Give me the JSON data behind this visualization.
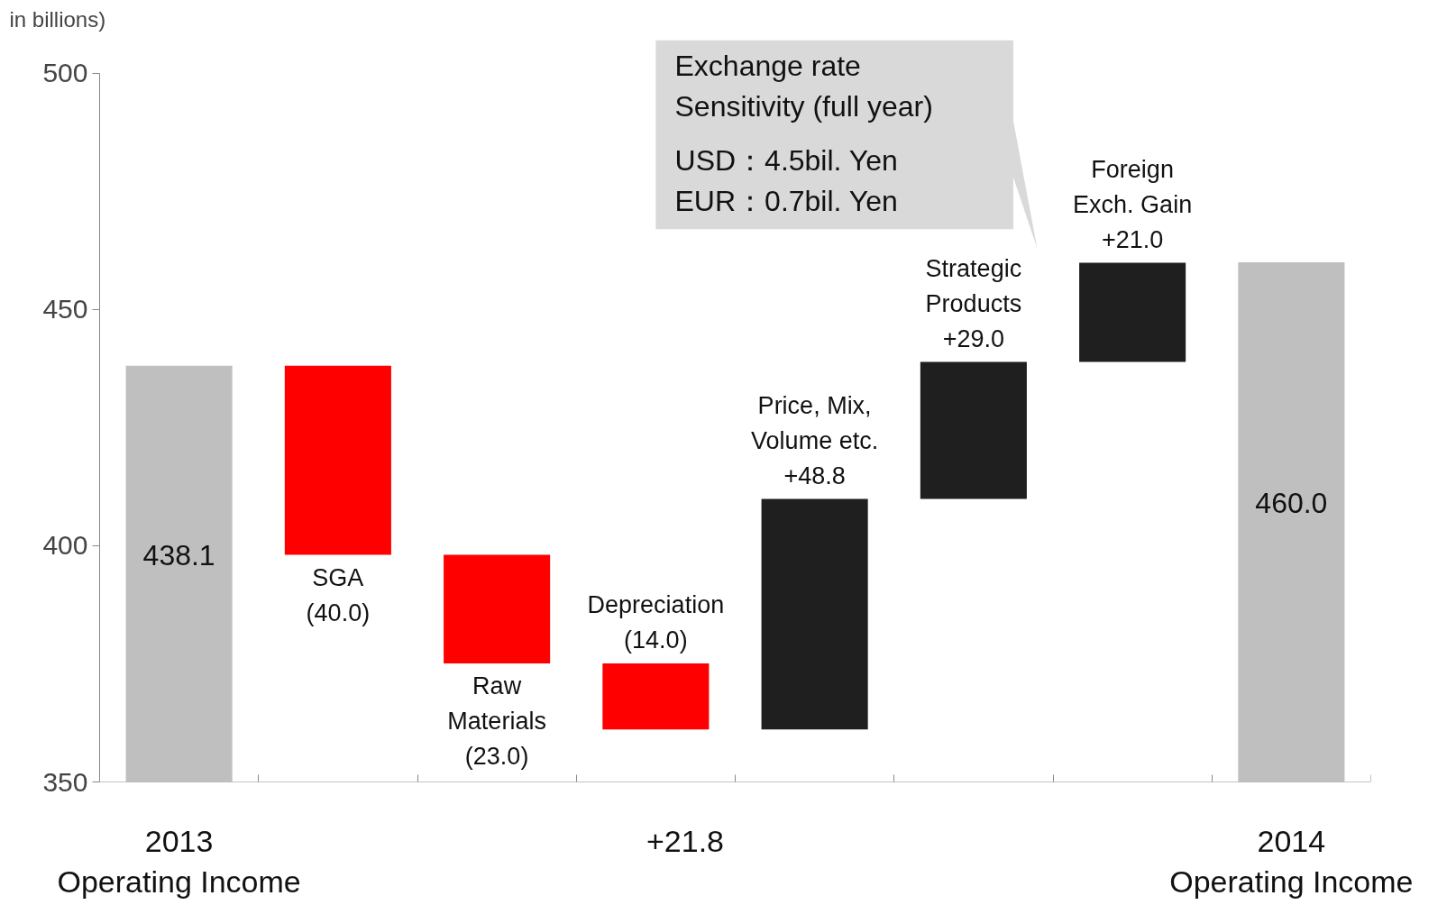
{
  "chart_data": {
    "type": "bar",
    "ylabel": "in billions)",
    "categories": [
      "2013\nOperating Income",
      null,
      null,
      null,
      null,
      null,
      null,
      "2014\nOperating Income"
    ],
    "values": [
      438.1,
      -40.0,
      -23.0,
      -14.0,
      48.8,
      29.0,
      21.0,
      460.0
    ],
    "base": [
      0,
      438.1,
      398.1,
      375.1,
      361.1,
      409.9,
      438.9,
      0
    ],
    "colors": [
      "#bfbfbf",
      "#ff0000",
      "#ff0000",
      "#ff0000",
      "#1f1f1f",
      "#1f1f1f",
      "#1f1f1f",
      "#bfbfbf"
    ],
    "value_labels": [
      "438.1",
      "SGA\n(40.0)",
      "Raw\nMaterials\n(23.0)",
      "Depreciation\n(14.0)",
      "Price, Mix,\nVolume etc.\n+48.8",
      "Strategic\nProducts\n+29.0",
      "Foreign\nExch. Gain\n+21.0",
      "460.0"
    ],
    "ylim": [
      350,
      500
    ],
    "yticks": [
      350,
      400,
      450,
      500
    ],
    "grid": false,
    "annotations": [
      "Exchange rate\nSensitivity (full year)",
      "USD：4.5bil. Yen\nEUR：0.7bil. Yen",
      "+21.8"
    ]
  }
}
